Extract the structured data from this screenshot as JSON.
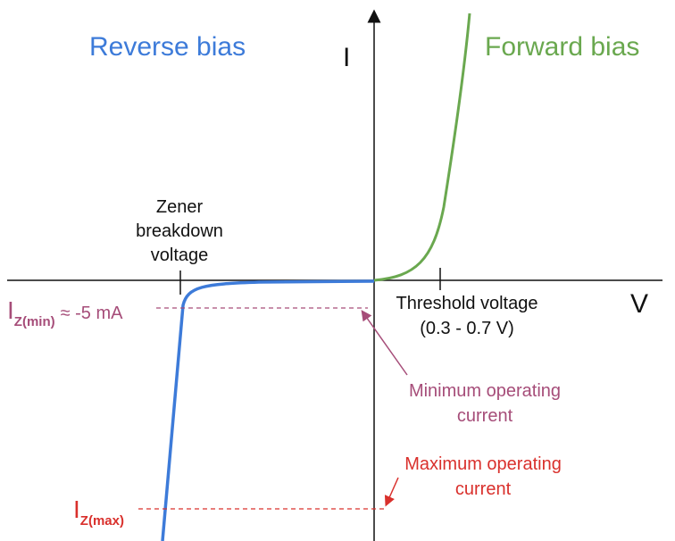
{
  "labels": {
    "reverse_bias": "Reverse bias",
    "forward_bias": "Forward bias"
  },
  "axes": {
    "y": "I",
    "x": "V"
  },
  "annotations": {
    "zener": [
      "Zener",
      "breakdown",
      "voltage"
    ],
    "threshold": [
      "Threshold voltage",
      "(0.3 - 0.7 V)"
    ],
    "iz_min": {
      "symbol": "I",
      "subscript": "Z(min)",
      "value": "≈ -5 mA"
    },
    "iz_max": {
      "symbol": "I",
      "subscript": "Z(max)"
    },
    "min_current": [
      "Minimum operating",
      "current"
    ],
    "max_current": [
      "Maximum operating",
      "current"
    ]
  }
}
